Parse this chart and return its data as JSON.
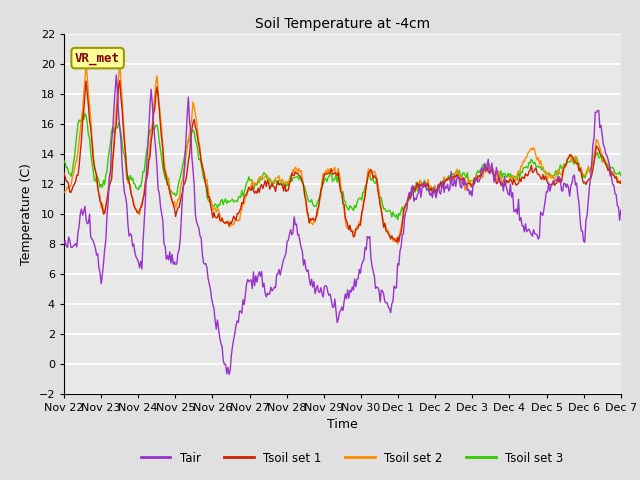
{
  "title": "Soil Temperature at -4cm",
  "xlabel": "Time",
  "ylabel": "Temperature (C)",
  "ylim": [
    -2,
    22
  ],
  "yticks": [
    -2,
    0,
    2,
    4,
    6,
    8,
    10,
    12,
    14,
    16,
    18,
    20,
    22
  ],
  "fig_bg_color": "#e0e0e0",
  "plot_bg_color": "#e8e8e8",
  "legend_labels": [
    "Tair",
    "Tsoil set 1",
    "Tsoil set 2",
    "Tsoil set 3"
  ],
  "legend_colors": [
    "#9932cc",
    "#cc2200",
    "#ff8c00",
    "#33cc00"
  ],
  "annotation_text": "VR_met",
  "annotation_bg": "#ffff99",
  "annotation_border": "#999900",
  "annotation_text_color": "#880000",
  "xtick_labels": [
    "Nov 22",
    "Nov 23",
    "Nov 24",
    "Nov 25",
    "Nov 26",
    "Nov 27",
    "Nov 28",
    "Nov 29",
    "Nov 30",
    "Dec 1",
    "Dec 2",
    "Dec 3",
    "Dec 4",
    "Dec 5",
    "Dec 6",
    "Dec 7"
  ]
}
